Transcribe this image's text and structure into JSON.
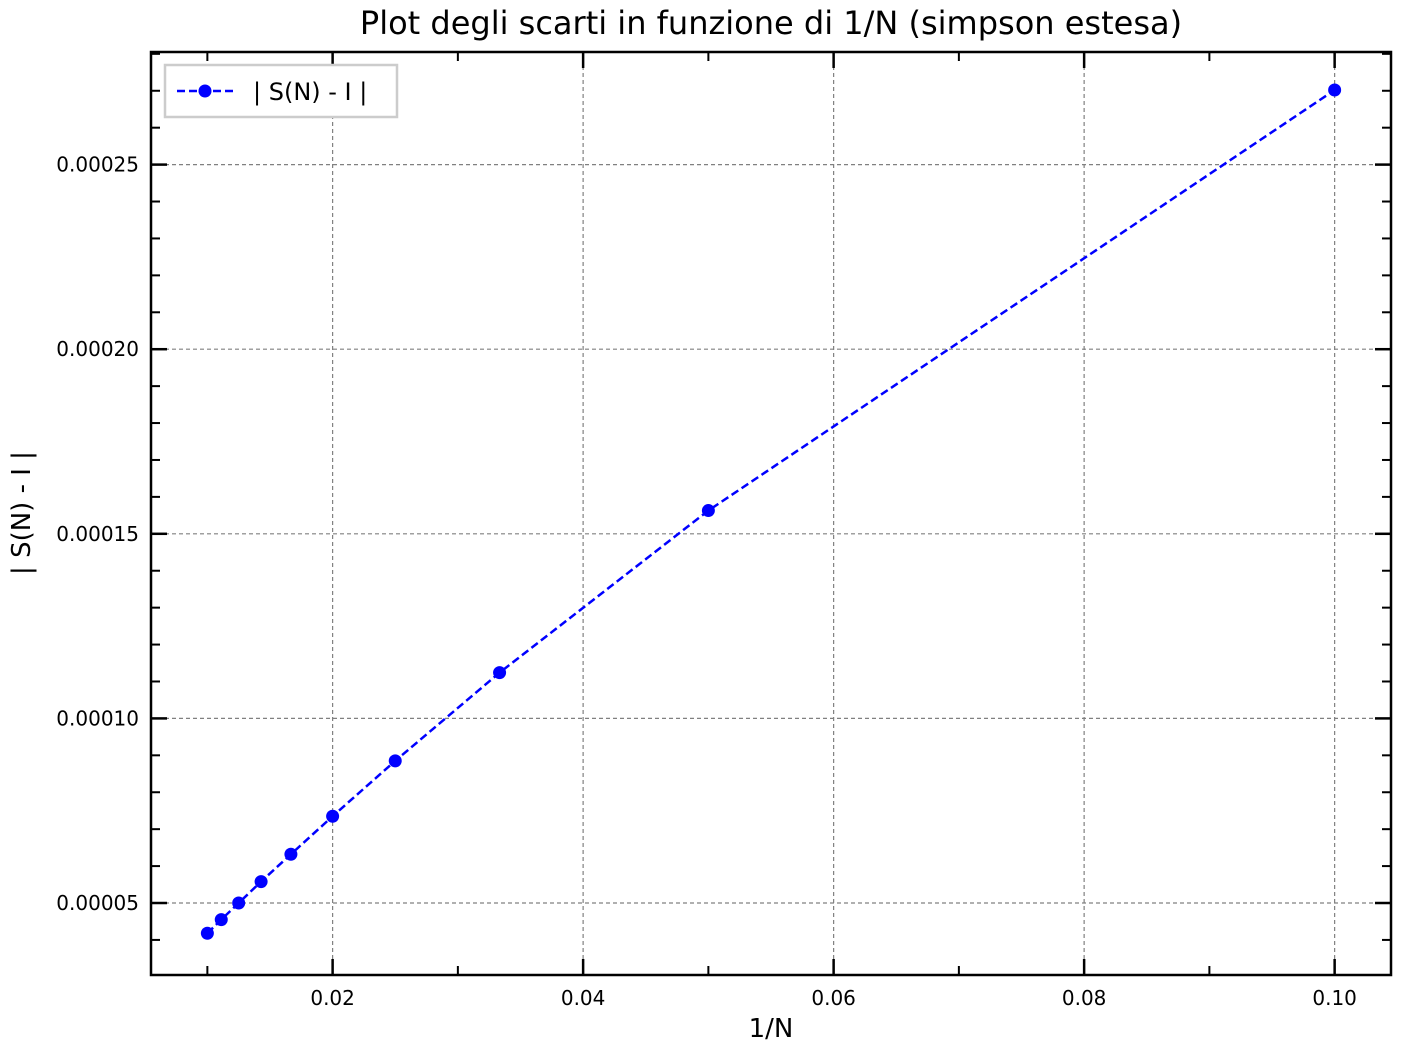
{
  "chart_data": {
    "type": "line",
    "title": "Plot degli scarti in funzione di 1/N (simpson estesa)",
    "xlabel": "1/N",
    "ylabel": "| S(N) - I |",
    "xlim": [
      0.0055,
      0.1045
    ],
    "ylim": [
      3.05e-05,
      0.0002805
    ],
    "xticks": [
      0.02,
      0.04,
      0.06,
      0.08,
      0.1
    ],
    "xtick_labels": [
      "0.02",
      "0.04",
      "0.06",
      "0.08",
      "0.10"
    ],
    "xminor_ticks": [
      0.01,
      0.03,
      0.05,
      0.07,
      0.09
    ],
    "yticks": [
      5e-05,
      0.0001,
      0.00015,
      0.0002,
      0.00025
    ],
    "ytick_labels": [
      "0.00005",
      "0.00010",
      "0.00015",
      "0.00020",
      "0.00025"
    ],
    "yminor_step": 1e-05,
    "grid": true,
    "legend_position": "top-left",
    "series": [
      {
        "name": "| S(N) - I |",
        "color": "#0000ff",
        "line_style": "dashed",
        "marker": "circle",
        "x": [
          0.01,
          0.01111,
          0.0125,
          0.01429,
          0.01667,
          0.02,
          0.025,
          0.03333,
          0.05,
          0.1
        ],
        "y": [
          4.18e-05,
          4.55e-05,
          5e-05,
          5.58e-05,
          6.32e-05,
          7.35e-05,
          8.85e-05,
          0.0001124,
          0.0001563,
          0.0002702
        ]
      }
    ]
  }
}
